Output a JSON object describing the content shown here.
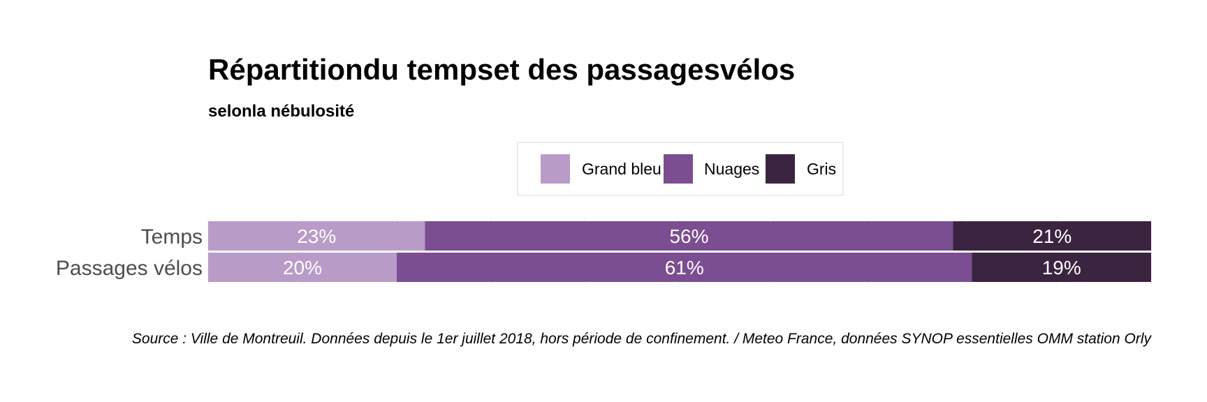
{
  "title": "Répartitiondu tempset des passagesvélos",
  "subtitle": "selonla nébulosité",
  "caption": "Source : Ville de Montreuil. Données depuis le 1er juillet 2018, hors période de confinement. / Meteo France, données SYNOP essentielles OMM station Orly",
  "colors": {
    "grand_bleu": "#b99bc8",
    "nuages": "#7b4d91",
    "gris": "#3b2440"
  },
  "chart_data": {
    "type": "bar",
    "orientation": "horizontal",
    "stacked": true,
    "normalized": true,
    "categories": [
      "Temps",
      "Passages vélos"
    ],
    "series": [
      {
        "name": "Grand bleu",
        "values": [
          23,
          20
        ],
        "labels": [
          "23%",
          "20%"
        ]
      },
      {
        "name": "Nuages",
        "values": [
          56,
          61
        ],
        "labels": [
          "56%",
          "61%"
        ]
      },
      {
        "name": "Gris",
        "values": [
          21,
          19
        ],
        "labels": [
          "21%",
          "19%"
        ]
      }
    ],
    "xlim": [
      0,
      100
    ],
    "grid": true,
    "legend": "top"
  }
}
